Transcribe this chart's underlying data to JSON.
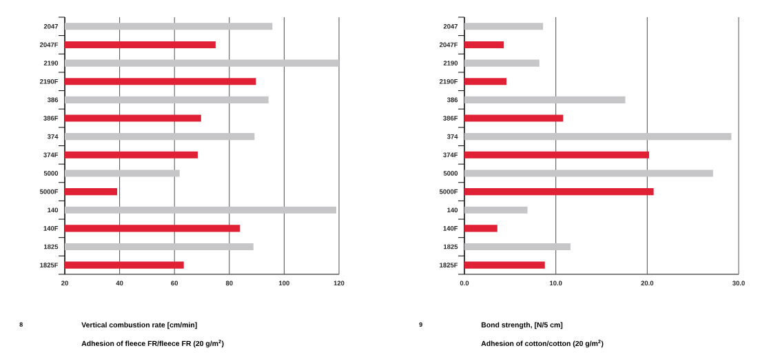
{
  "chart_data": [
    {
      "type": "bar",
      "orientation": "horizontal",
      "title": "Vertical combustion rate [cm/min]",
      "subtitle": "Adhesion of fleece FR/fleece FR (20 g/m$^{2}$)",
      "annotations": [
        "8"
      ],
      "categories": [
        "2047",
        "2047F",
        "2190",
        "2190F",
        "386",
        "386F",
        "374",
        "374F",
        "5000",
        "5000F",
        "140",
        "140F",
        "1825",
        "1825F"
      ],
      "values": [
        95.7,
        75,
        120,
        89.7,
        94.3,
        69.7,
        89.2,
        68.5,
        61.9,
        39.1,
        119,
        83.9,
        88.8,
        63.4
      ],
      "colors": [
        "#c6c6c8",
        "#e02035",
        "#c6c6c8",
        "#e02035",
        "#c6c6c8",
        "#e02035",
        "#c6c6c8",
        "#e02035",
        "#c6c6c8",
        "#e02035",
        "#c6c6c8",
        "#e02035",
        "#c6c6c8",
        "#e02035"
      ],
      "xlim": [
        20,
        120
      ],
      "xticks": [
        20,
        40,
        60,
        80,
        100,
        120
      ],
      "grid": "x"
    },
    {
      "type": "bar",
      "orientation": "horizontal",
      "title": "Bond strength, [N/5 cm]",
      "subtitle": "Adhesion of cotton/cotton (20 g/m$^{2}$)",
      "annotations": [
        "9"
      ],
      "categories": [
        "2047",
        "2047F",
        "2190",
        "2190F",
        "386",
        "386F",
        "374",
        "374F",
        "5000",
        "5000F",
        "140",
        "140F",
        "1825",
        "1825F"
      ],
      "values": [
        8.6,
        4.3,
        8.2,
        4.6,
        17.6,
        10.8,
        29.2,
        20.2,
        27.2,
        20.7,
        6.9,
        3.6,
        11.6,
        8.8
      ],
      "colors": [
        "#c6c6c8",
        "#e02035",
        "#c6c6c8",
        "#e02035",
        "#c6c6c8",
        "#e02035",
        "#c6c6c8",
        "#e02035",
        "#c6c6c8",
        "#e02035",
        "#c6c6c8",
        "#e02035",
        "#c6c6c8",
        "#e02035"
      ],
      "xlim": [
        0,
        30
      ],
      "xticks": [
        {
          "value": 0,
          "label": "0.0"
        },
        {
          "value": 10,
          "label": "10.0"
        },
        {
          "value": 20,
          "label": "20.0"
        },
        {
          "value": 30,
          "label": "30.0"
        }
      ],
      "grid": "x"
    }
  ]
}
